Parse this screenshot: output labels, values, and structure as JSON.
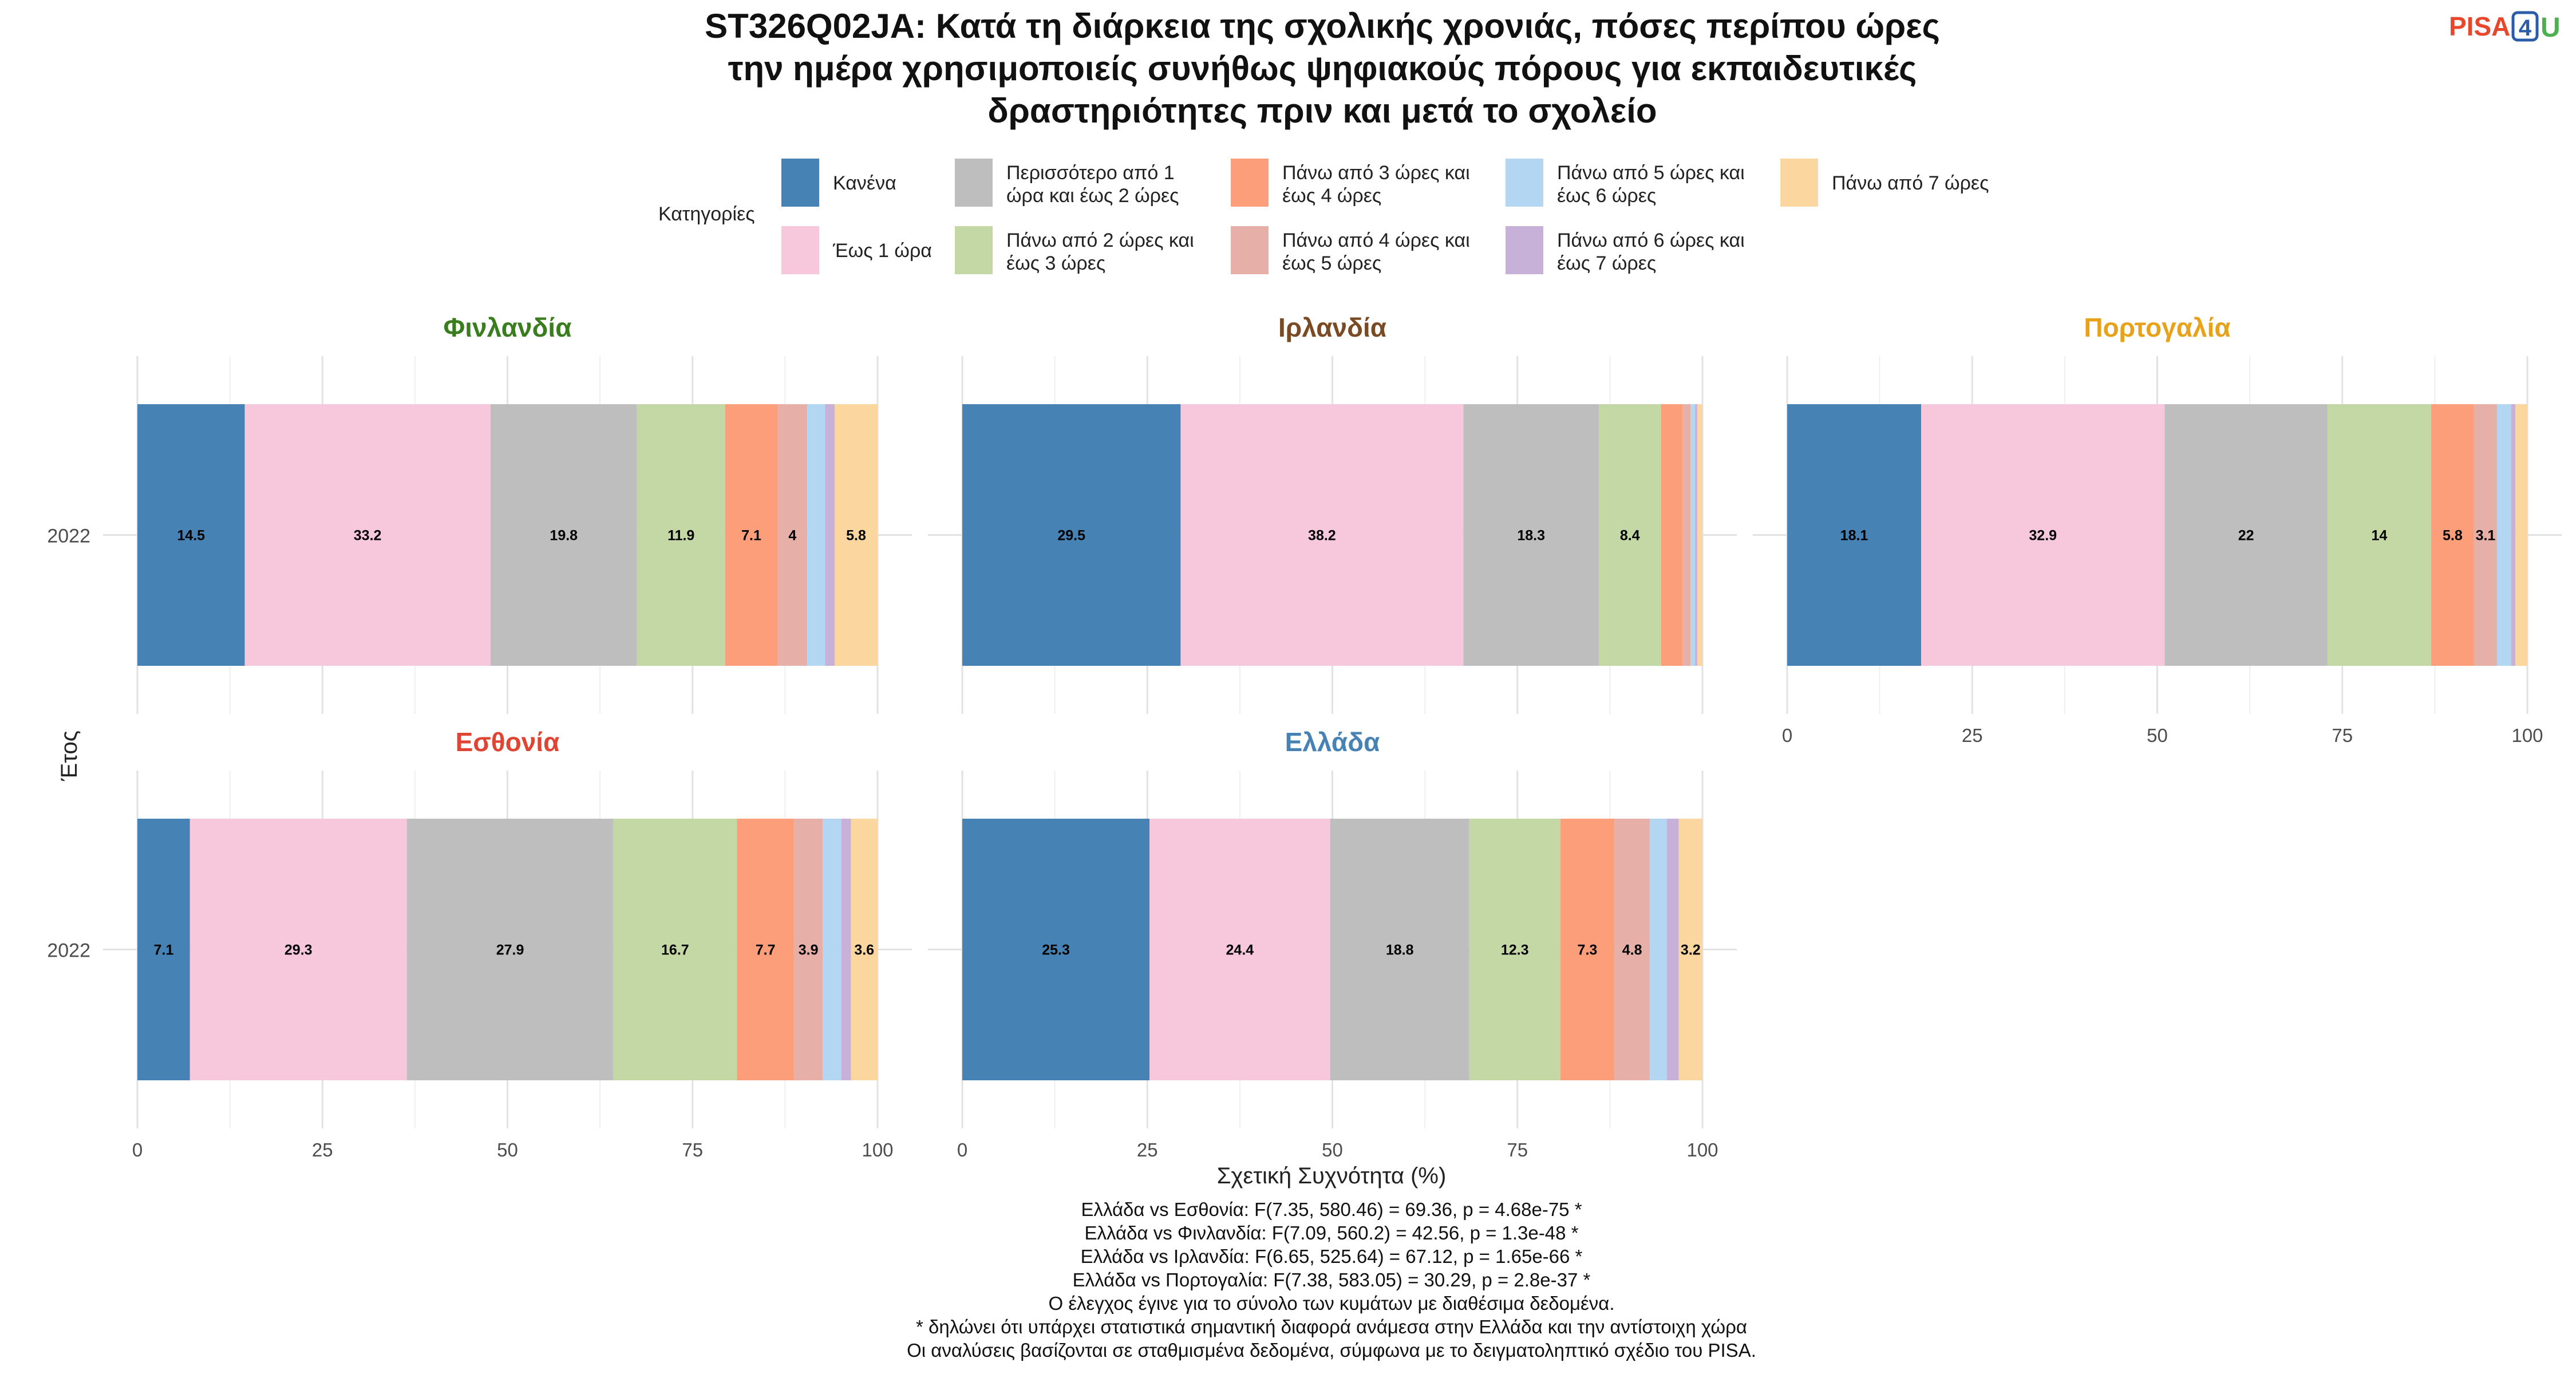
{
  "title_lines": [
    "ST326Q02JA: Κατά τη διάρκεια της σχολικής χρονιάς, πόσες περίπου ώρες",
    "την ημέρα χρησιμοποιείς συνήθως ψηφιακούς πόρους για εκπαιδευτικές",
    "δραστηριότητες πριν και μετά το σχολείο"
  ],
  "logo": {
    "text_a": "PISA",
    "text_b": "4",
    "text_c": "U",
    "color_a": "#e8472b",
    "color_b": "#2a5caa",
    "color_c": "#4caf50"
  },
  "legend": {
    "title": "Κατηγορίες",
    "items": [
      {
        "lines": [
          "Κανένα"
        ],
        "color": "#4682b4"
      },
      {
        "lines": [
          "Έως 1 ώρα"
        ],
        "color": "#f7c8dc"
      },
      {
        "lines": [
          "Περισσότερο από 1",
          "ώρα και έως 2 ώρες"
        ],
        "color": "#bebebe"
      },
      {
        "lines": [
          "Πάνω από 2 ώρες και",
          "έως 3 ώρες"
        ],
        "color": "#c3d8a5"
      },
      {
        "lines": [
          "Πάνω από 3 ώρες και",
          "έως 4 ώρες"
        ],
        "color": "#fc9e7a"
      },
      {
        "lines": [
          "Πάνω από 4 ώρες και",
          "έως 5 ώρες"
        ],
        "color": "#e6b0a8"
      },
      {
        "lines": [
          "Πάνω από 5 ώρες και",
          "έως 6 ώρες"
        ],
        "color": "#b3d7f2"
      },
      {
        "lines": [
          "Πάνω από 6 ώρες και",
          "έως 7 ώρες"
        ],
        "color": "#c8b1d8"
      },
      {
        "lines": [
          "Πάνω από 7 ώρες"
        ],
        "color": "#fbd69e"
      }
    ]
  },
  "axis": {
    "y_title": "Έτος",
    "x_title": "Σχετική Συχνότητα (%)",
    "x_ticks": [
      "0",
      "25",
      "50",
      "75",
      "100"
    ]
  },
  "footer_lines": [
    "Ελλάδα vs Εσθονία: F(7.35, 580.46) = 69.36, p = 4.68e-75 *",
    "Ελλάδα vs Φινλανδία: F(7.09, 560.2) = 42.56, p = 1.3e-48 *",
    "Ελλάδα vs Ιρλανδία: F(6.65, 525.64) = 67.12, p = 1.65e-66 *",
    "Ελλάδα vs Πορτογαλία: F(7.38, 583.05) = 30.29, p = 2.8e-37 *",
    "Ο έλεγχος έγινε για το σύνολο των κυμάτων με διαθέσιμα δεδομένα.",
    "* δηλώνει ότι υπάρχει στατιστικά σημαντική διαφορά ανάμεσα στην Ελλάδα και την αντίστοιχη χώρα",
    "Οι αναλύσεις βασίζονται σε σταθμισμένα δεδομένα, σύμφωνα με το δειγματοληπτικό σχέδιο του PISA."
  ],
  "chart_data": {
    "type": "bar",
    "orientation": "horizontal-stacked",
    "xlim": [
      0,
      100
    ],
    "xlabel": "Σχετική Συχνότητα (%)",
    "ylabel": "Έτος",
    "grid": true,
    "legend_position": "top",
    "categories": [
      "Κανένα",
      "Έως 1 ώρα",
      "Περισσότερο από 1 ώρα και έως 2 ώρες",
      "Πάνω από 2 ώρες και έως 3 ώρες",
      "Πάνω από 3 ώρες και έως 4 ώρες",
      "Πάνω από 4 ώρες και έως 5 ώρες",
      "Πάνω από 5 ώρες και έως 6 ώρες",
      "Πάνω από 6 ώρες και έως 7 ώρες",
      "Πάνω από 7 ώρες"
    ],
    "panels": [
      {
        "name": "Φινλανδία",
        "color": "#3a7d1e",
        "year": "2022",
        "values": [
          14.5,
          33.2,
          19.8,
          11.9,
          7.1,
          4,
          2.4,
          1.3,
          5.8
        ]
      },
      {
        "name": "Ιρλανδία",
        "color": "#7a4a22",
        "year": "2022",
        "values": [
          29.5,
          38.2,
          18.3,
          8.4,
          2.9,
          1.1,
          0.6,
          0.3,
          0.7
        ]
      },
      {
        "name": "Πορτογαλία",
        "color": "#e8a21a",
        "year": "2022",
        "values": [
          18.1,
          32.9,
          22,
          14,
          5.8,
          3.1,
          1.9,
          0.6,
          1.6
        ]
      },
      {
        "name": "Εσθονία",
        "color": "#e04432",
        "year": "2022",
        "values": [
          7.1,
          29.3,
          27.9,
          16.7,
          7.7,
          3.9,
          2.5,
          1.3,
          3.6
        ]
      },
      {
        "name": "Ελλάδα",
        "color": "#4682b4",
        "year": "2022",
        "values": [
          25.3,
          24.4,
          18.8,
          12.3,
          7.3,
          4.8,
          2.3,
          1.6,
          3.2
        ]
      }
    ],
    "label_threshold": 3
  }
}
